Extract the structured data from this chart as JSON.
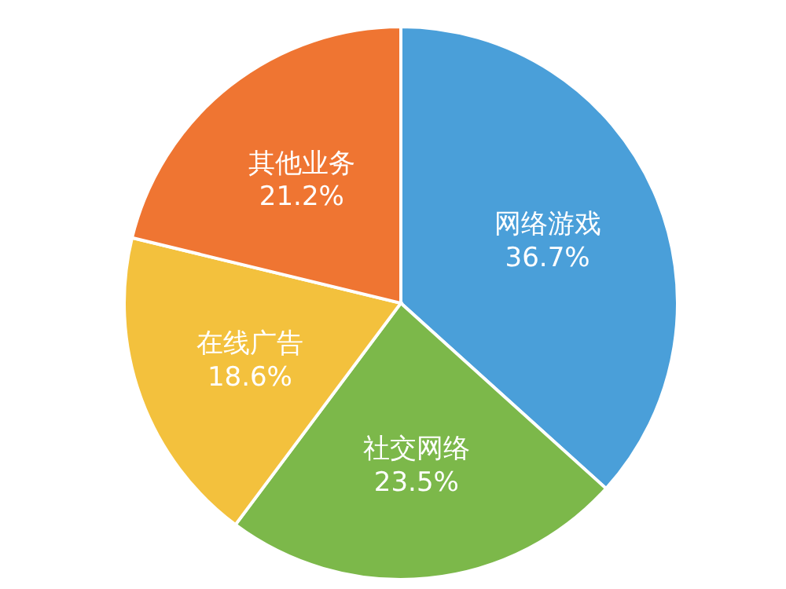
{
  "chart_data": {
    "type": "pie",
    "categories": [
      "网络游戏",
      "社交网络",
      "在线广告",
      "其他业务"
    ],
    "values": [
      36.7,
      23.5,
      18.6,
      21.2
    ],
    "value_labels": [
      "36.7%",
      "23.5%",
      "18.6%",
      "21.2%"
    ],
    "colors": [
      "#4a9fd9",
      "#7cb84a",
      "#f3c13d",
      "#ef7532"
    ],
    "legend": false
  }
}
